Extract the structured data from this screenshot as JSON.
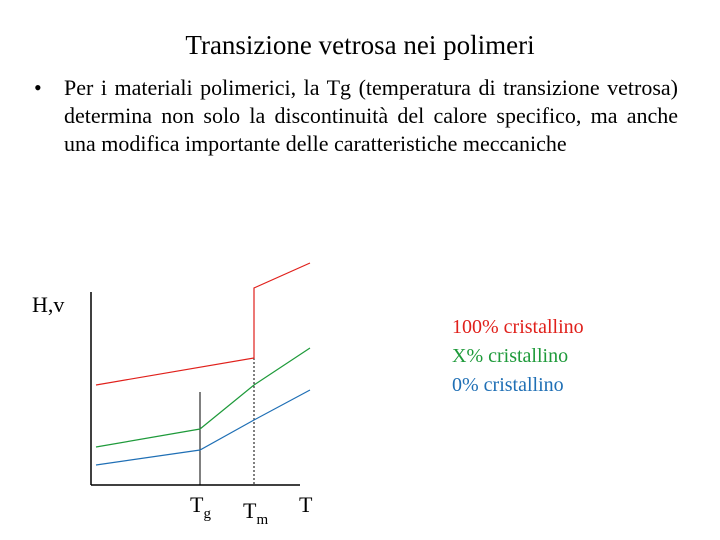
{
  "slide": {
    "title": "Transizione vetrosa nei polimeri",
    "bullet": "Per i materiali polimerici, la Tg (temperatura di transizione vetrosa) determina non solo la discontinuità del calore specifico, ma anche una modifica importante delle caratteristiche meccaniche"
  },
  "chart_data": {
    "type": "line",
    "ylabel": "H,v",
    "xlabel": "T",
    "x_markers": [
      {
        "label": "T",
        "subscript": "g"
      },
      {
        "label": "T",
        "subscript": "m"
      }
    ],
    "series": [
      {
        "name": "100% cristallino",
        "color": "#e0201b"
      },
      {
        "name": "X% cristallino",
        "color": "#1e9a3a"
      },
      {
        "name": "0% cristallino",
        "color": "#1f6fb5"
      }
    ]
  }
}
